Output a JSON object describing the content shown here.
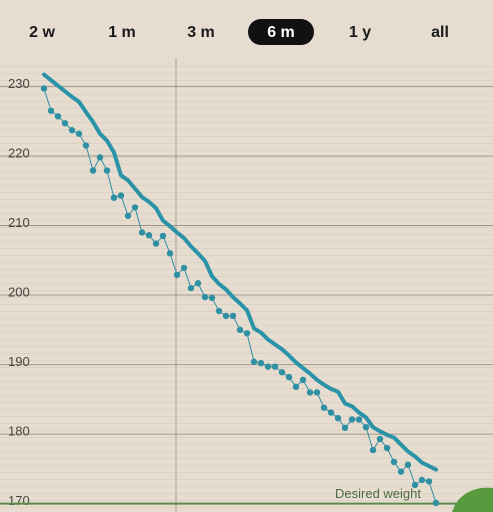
{
  "chart_data": {
    "type": "line",
    "tabs": [
      "2 w",
      "1 m",
      "3 m",
      "6 m",
      "1 y",
      "all"
    ],
    "selected_tab": 3,
    "categories": [
      null,
      null,
      null,
      null,
      null,
      null,
      null,
      null,
      null,
      null,
      null,
      null,
      null,
      null,
      null,
      null,
      null,
      null,
      null,
      null,
      null,
      null,
      null,
      null,
      null,
      null,
      null,
      null,
      null,
      null,
      null,
      null,
      null,
      null,
      null,
      null,
      null,
      null,
      null,
      null,
      null,
      null,
      null,
      null,
      null,
      null,
      null,
      null,
      null,
      null,
      null,
      null,
      null,
      null,
      null,
      null,
      null
    ],
    "series": [
      {
        "color": "#2a93a8",
        "width": 4,
        "markers": false,
        "values": [
          231.7,
          230.9,
          230.1,
          229.3,
          228.5,
          227.8,
          226.3,
          224.9,
          223.2,
          222.2,
          220.5,
          217.2,
          216.5,
          215.3,
          214.1,
          213.4,
          212.5,
          210.7,
          209.9,
          209.0,
          208.2,
          207.0,
          206.0,
          204.9,
          202.7,
          201.6,
          200.8,
          199.7,
          198.8,
          197.8,
          195.2,
          194.6,
          193.6,
          192.9,
          192.2,
          191.3,
          190.3,
          189.5,
          188.7,
          187.8,
          187.1,
          186.5,
          186.1,
          184.4,
          184.0,
          183.1,
          182.4,
          181.0,
          180.4,
          179.9,
          179.5,
          178.5,
          177.5,
          176.8,
          175.9,
          175.4,
          174.9
        ]
      },
      {
        "color": "#2f8fa3",
        "width": 1,
        "markers": true,
        "values": [
          229.7,
          226.5,
          225.7,
          224.7,
          223.7,
          223.2,
          221.5,
          217.9,
          219.8,
          217.9,
          214.0,
          214.3,
          211.4,
          212.6,
          209.0,
          208.6,
          207.4,
          208.5,
          206.0,
          202.9,
          203.9,
          201.0,
          201.7,
          199.7,
          199.6,
          197.7,
          197.0,
          197.0,
          195.0,
          194.5,
          190.4,
          190.2,
          189.7,
          189.7,
          188.9,
          188.2,
          186.8,
          187.8,
          186.0,
          186.0,
          183.8,
          183.1,
          182.3,
          180.9,
          182.1,
          182.1,
          181.0,
          177.7,
          179.3,
          178.0,
          176.0,
          174.6,
          175.6,
          172.7,
          173.4,
          173.2,
          170.1
        ]
      }
    ],
    "target": {
      "label": "Desired weight",
      "value": 170,
      "color": "#5a8a4a"
    },
    "ylim": [
      168.8,
      233.8
    ],
    "yticks": [
      170,
      180,
      190,
      200,
      210,
      220,
      230
    ],
    "grid": true
  }
}
